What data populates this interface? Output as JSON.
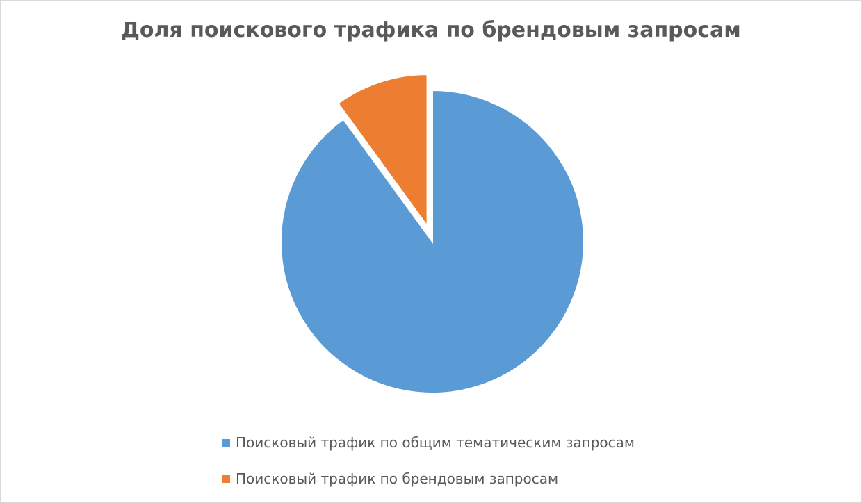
{
  "chart_data": {
    "type": "pie",
    "title": "Доля поискового трафика по брендовым запросам",
    "slices": [
      {
        "label": "Поисковый трафик по общим тематическим запросам",
        "value": 90,
        "color": "#5b9bd5",
        "exploded": false
      },
      {
        "label": "Поисковый трафик по брендовым запросам",
        "value": 10,
        "color": "#ed7d31",
        "exploded": true
      }
    ],
    "start_angle_deg": 0,
    "direction": "clockwise",
    "legend": {
      "position": "bottom"
    }
  }
}
